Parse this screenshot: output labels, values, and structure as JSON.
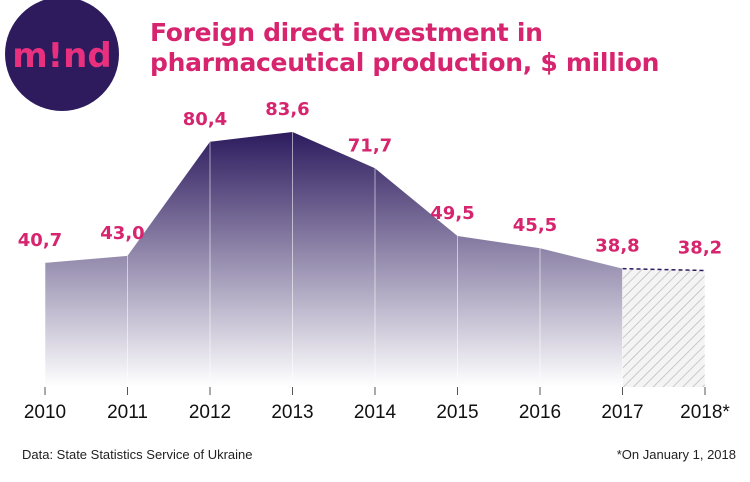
{
  "brand": {
    "logo_text": "m!nd",
    "circle_color": "#2d1b5e",
    "text_color": "#e8307e"
  },
  "title_line1": "Foreign direct investment in",
  "title_line2": "pharmaceutical production, $ million",
  "source": "Data: State Statistics Service of Ukraine",
  "footnote": "*On January 1, 2018",
  "colors": {
    "accent": "#d6246e",
    "area_top": "#2d1b5e",
    "area_bottom": "#ffffff",
    "projection_hatch": "#cccccc"
  },
  "chart_data": {
    "type": "area",
    "title": "Foreign direct investment in pharmaceutical production, $ million",
    "categories": [
      "2010",
      "2011",
      "2012",
      "2013",
      "2014",
      "2015",
      "2016",
      "2017",
      "2018*"
    ],
    "values": [
      40.7,
      43.0,
      80.4,
      83.6,
      71.7,
      49.5,
      45.5,
      38.8,
      38.2
    ],
    "value_labels": [
      "40,7",
      "43,0",
      "80,4",
      "83,6",
      "71,7",
      "49,5",
      "45,5",
      "38,8",
      "38,2"
    ],
    "projected_from_index": 7,
    "ylim": [
      0,
      83.6
    ],
    "grid": false,
    "legend": "none"
  }
}
